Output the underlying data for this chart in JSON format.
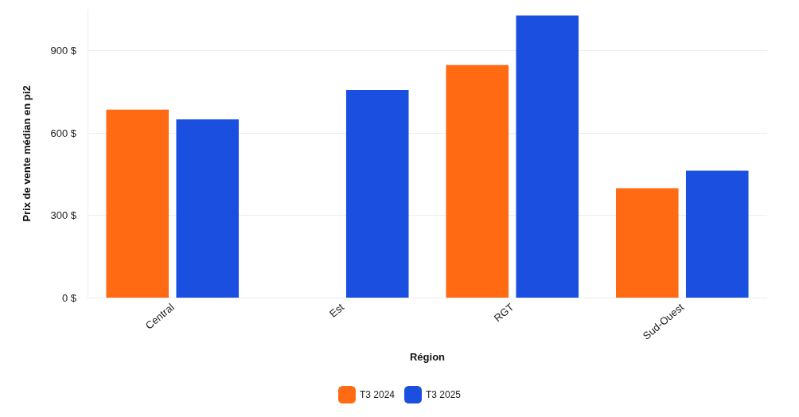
{
  "chart_data": {
    "type": "bar",
    "xlabel": "Région",
    "ylabel": "Prix de vente médian en pi2",
    "categories": [
      "Central",
      "Est",
      "RGT",
      "Sud-Ouest"
    ],
    "series": [
      {
        "name": "T3 2024",
        "color": "#ff6a13",
        "values": [
          685,
          null,
          848,
          399
        ]
      },
      {
        "name": "T3 2025",
        "color": "#1a4fe0",
        "values": [
          650,
          757,
          1028,
          463
        ]
      }
    ],
    "ylim": [
      0,
      1050
    ],
    "yticks": [
      {
        "value": 0,
        "label": "0 $"
      },
      {
        "value": 300,
        "label": "300 $"
      },
      {
        "value": 600,
        "label": "600 $"
      },
      {
        "value": 900,
        "label": "900 $"
      }
    ],
    "grid": "y",
    "legend": "bottom"
  }
}
